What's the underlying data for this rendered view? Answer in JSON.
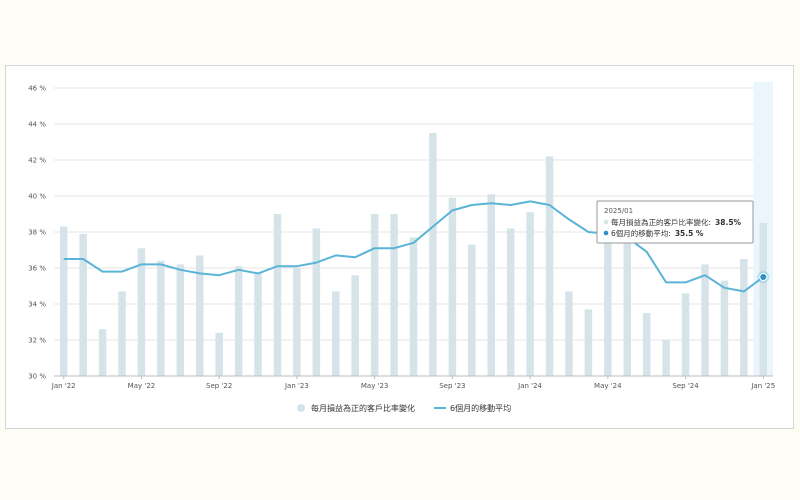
{
  "chart_data": {
    "type": "bar",
    "title": "",
    "xlabel": "",
    "ylabel": "",
    "ylim": [
      30,
      46
    ],
    "yticks": [
      30,
      32,
      34,
      36,
      38,
      40,
      42,
      44,
      46
    ],
    "ytick_labels": [
      "30 %",
      "32 %",
      "34 %",
      "36 %",
      "38 %",
      "40 %",
      "42 %",
      "44 %",
      "46 %"
    ],
    "categories": [
      "2022-01",
      "2022-02",
      "2022-03",
      "2022-04",
      "2022-05",
      "2022-06",
      "2022-07",
      "2022-08",
      "2022-09",
      "2022-10",
      "2022-11",
      "2022-12",
      "2023-01",
      "2023-02",
      "2023-03",
      "2023-04",
      "2023-05",
      "2023-06",
      "2023-07",
      "2023-08",
      "2023-09",
      "2023-10",
      "2023-11",
      "2023-12",
      "2024-01",
      "2024-02",
      "2024-03",
      "2024-04",
      "2024-05",
      "2024-06",
      "2024-07",
      "2024-08",
      "2024-09",
      "2024-10",
      "2024-11",
      "2024-12",
      "2025-01"
    ],
    "xtick_labels": [
      {
        "index": 0,
        "label": "Jan '22"
      },
      {
        "index": 4,
        "label": "May '22"
      },
      {
        "index": 8,
        "label": "Sep '22"
      },
      {
        "index": 12,
        "label": "Jan '23"
      },
      {
        "index": 16,
        "label": "May '23"
      },
      {
        "index": 20,
        "label": "Sep '23"
      },
      {
        "index": 24,
        "label": "Jan '24"
      },
      {
        "index": 28,
        "label": "May '24"
      },
      {
        "index": 32,
        "label": "Sep '24"
      },
      {
        "index": 36,
        "label": "Jan '25"
      }
    ],
    "series": [
      {
        "name": "每月損益為正的客戶比率變化",
        "type": "bar",
        "color": "#d6e4ea",
        "values": [
          38.3,
          37.9,
          32.6,
          34.7,
          37.1,
          36.4,
          36.2,
          36.7,
          32.4,
          36.1,
          35.7,
          39.0,
          36.0,
          38.2,
          34.7,
          35.6,
          39.0,
          39.0,
          37.7,
          43.5,
          39.9,
          37.3,
          40.1,
          38.2,
          39.1,
          42.2,
          34.7,
          33.7,
          39.2,
          37.4,
          33.5,
          32.0,
          34.6,
          36.2,
          35.3,
          36.5,
          38.5
        ]
      },
      {
        "name": "6個月的移動平均",
        "type": "line",
        "color": "#5ab4d6",
        "values": [
          36.5,
          36.5,
          35.8,
          35.8,
          36.2,
          36.2,
          35.9,
          35.7,
          35.6,
          35.9,
          35.7,
          36.1,
          36.1,
          36.3,
          36.7,
          36.6,
          37.1,
          37.1,
          37.4,
          38.3,
          39.2,
          39.5,
          39.6,
          39.5,
          39.7,
          39.5,
          38.7,
          38.0,
          37.9,
          37.7,
          36.9,
          35.2,
          35.2,
          35.6,
          34.9,
          34.7,
          35.5
        ]
      }
    ],
    "highlight_index": 36,
    "tooltip": {
      "date": "2025/01",
      "bar_label": "每月損益為正的客戶比率變化:",
      "bar_value": "38.5%",
      "line_label": "6個月的移動平均:",
      "line_value": "35.5 %"
    },
    "legend": [
      {
        "label": "每月損益為正的客戶比率變化",
        "kind": "bar",
        "color": "#d6e4ea"
      },
      {
        "label": "6個月的移動平均",
        "kind": "line",
        "color": "#5ab4d6"
      }
    ]
  }
}
